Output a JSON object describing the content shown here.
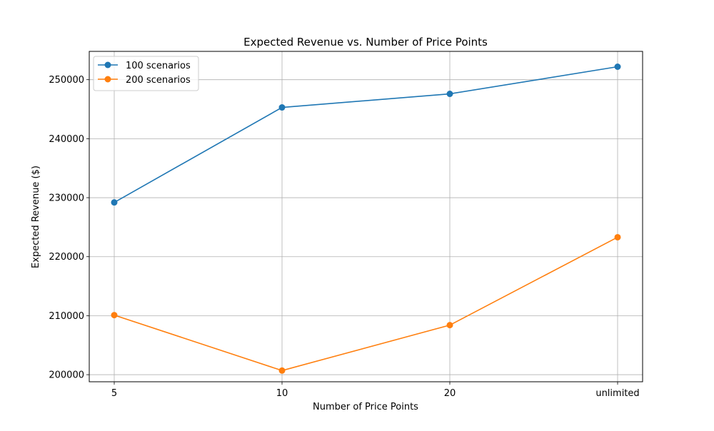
{
  "chart_data": {
    "type": "line",
    "title": "Expected Revenue vs. Number of Price Points",
    "xlabel": "Number of Price Points",
    "ylabel": "Expected Revenue ($)",
    "categories": [
      "5",
      "10",
      "20",
      "unlimited"
    ],
    "ylim": [
      198800,
      254800
    ],
    "yticks": [
      200000,
      210000,
      220000,
      230000,
      240000,
      250000
    ],
    "grid": true,
    "legend_position": "top-left",
    "series": [
      {
        "name": "100 scenarios",
        "color": "#1f77b4",
        "marker": "circle",
        "values": [
          229200,
          245300,
          247600,
          252200
        ]
      },
      {
        "name": "200 scenarios",
        "color": "#ff7f0e",
        "marker": "circle",
        "values": [
          210100,
          200700,
          208400,
          223300
        ]
      }
    ]
  }
}
